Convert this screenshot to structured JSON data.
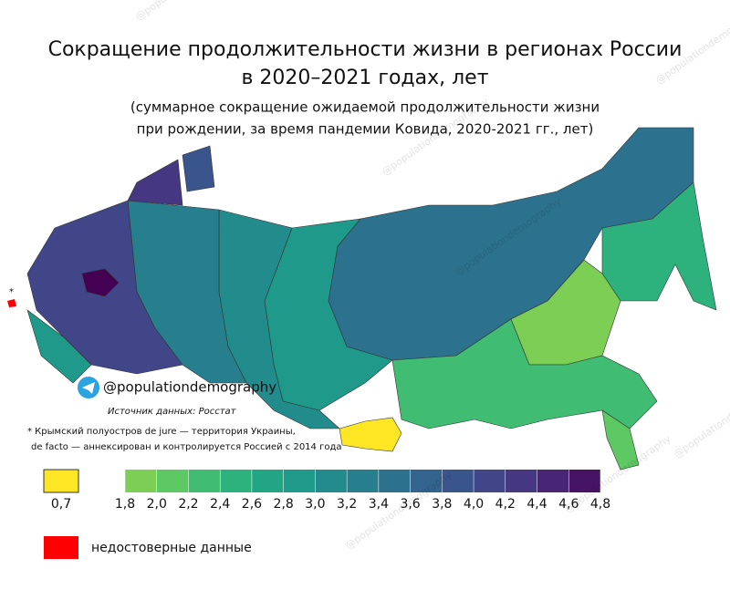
{
  "title_lines": [
    "Сокращение продолжительности жизни в регионах России",
    "в 2020–2021 годах, лет"
  ],
  "subtitle_lines": [
    "(суммарное сокращение ожидаемой продолжительности жизни",
    "при рождении, за время пандемии Ковида, 2020-2021 гг., лет)"
  ],
  "handle": "@populationdemography",
  "source": "Источник данных: Росстат",
  "footnote_lines": [
    "* Крымский полуостров de jure — территория Украины,",
    "de facto — аннексирован и контролируется Россией с 2014 года"
  ],
  "watermark": "@populationdemography",
  "legend": {
    "special": {
      "value": 0.7,
      "label": "0,7",
      "color": "#fde725"
    },
    "scale": {
      "colors": [
        "#7ccf54",
        "#5ec962",
        "#40bd72",
        "#2db27d",
        "#21a585",
        "#1f998a",
        "#228c8d",
        "#277f8e",
        "#2c718e",
        "#32648e",
        "#39558c",
        "#404688",
        "#453781",
        "#482576",
        "#471365"
      ],
      "ticks": [
        {
          "value": 1.8,
          "label": "1,8"
        },
        {
          "value": 2.0,
          "label": "2,0"
        },
        {
          "value": 2.2,
          "label": "2,2"
        },
        {
          "value": 2.4,
          "label": "2,4"
        },
        {
          "value": 2.6,
          "label": "2,6"
        },
        {
          "value": 2.8,
          "label": "2,8"
        },
        {
          "value": 3.0,
          "label": "3,0"
        },
        {
          "value": 3.2,
          "label": "3,2"
        },
        {
          "value": 3.4,
          "label": "3,4"
        },
        {
          "value": 3.6,
          "label": "3,6"
        },
        {
          "value": 3.8,
          "label": "3,8"
        },
        {
          "value": 4.0,
          "label": "4,0"
        },
        {
          "value": 4.2,
          "label": "4,2"
        },
        {
          "value": 4.4,
          "label": "4,4"
        },
        {
          "value": 4.6,
          "label": "4,6"
        },
        {
          "value": 4.8,
          "label": "4,8"
        }
      ]
    },
    "missing": {
      "label": "недостоверные данные",
      "color": "#ff0000"
    }
  }
}
